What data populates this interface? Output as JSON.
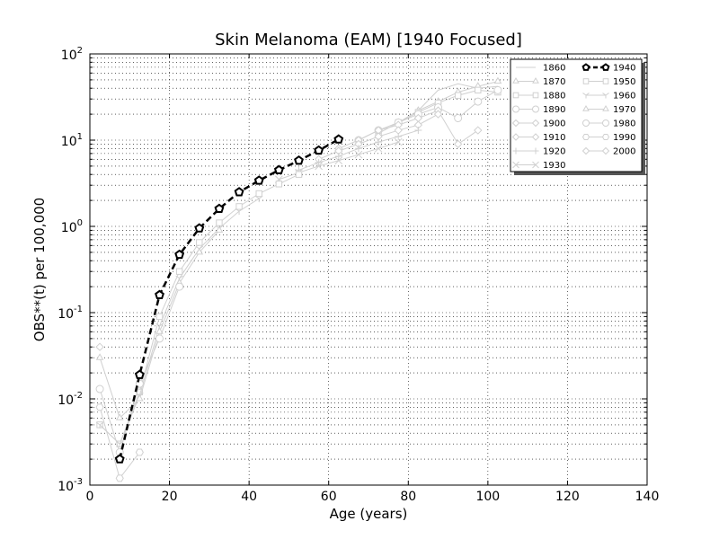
{
  "chart_data": {
    "type": "line",
    "title": "Skin Melanoma (EAM) [1940 Focused]",
    "xlabel": "Age (years)",
    "ylabel": "OBS**(t) per 100,000",
    "xlim": [
      0,
      140
    ],
    "ylim": [
      0.001,
      100
    ],
    "yscale": "log",
    "grid": true,
    "x_ticks": [
      "0",
      "20",
      "40",
      "60",
      "80",
      "100",
      "120",
      "140"
    ],
    "y_ticks": [
      {
        "base": "10",
        "exp": "-3"
      },
      {
        "base": "10",
        "exp": "-2"
      },
      {
        "base": "10",
        "exp": "-1"
      },
      {
        "base": "10",
        "exp": "0"
      },
      {
        "base": "10",
        "exp": "1"
      },
      {
        "base": "10",
        "exp": "2"
      }
    ],
    "legend_position": "top-right",
    "focused_series": "1940",
    "colors": {
      "focused": "#000000",
      "background": "#d0d0d0"
    },
    "series": [
      {
        "name": "1860",
        "marker": "none",
        "x": [
          82.5,
          87.5,
          92.5,
          97.5,
          102.5
        ],
        "y": [
          22,
          38,
          45,
          40,
          42
        ]
      },
      {
        "name": "1870",
        "marker": "triangle",
        "x": [
          77.5,
          82.5,
          87.5,
          92.5,
          97.5,
          102.5
        ],
        "y": [
          16,
          22,
          28,
          36,
          42,
          48
        ]
      },
      {
        "name": "1880",
        "marker": "square",
        "x": [
          72.5,
          77.5,
          82.5,
          87.5,
          92.5,
          97.5,
          102.5
        ],
        "y": [
          12,
          16,
          21,
          27,
          33,
          38,
          36
        ]
      },
      {
        "name": "1890",
        "marker": "circle",
        "x": [
          67.5,
          72.5,
          77.5,
          82.5,
          87.5,
          92.5,
          97.5,
          102.5
        ],
        "y": [
          10,
          13,
          16,
          20,
          24,
          18,
          28,
          38
        ]
      },
      {
        "name": "1900",
        "marker": "diamond",
        "x": [
          62.5,
          67.5,
          72.5,
          77.5,
          82.5,
          87.5,
          92.5,
          97.5
        ],
        "y": [
          8,
          10,
          13,
          15,
          18,
          22,
          9,
          13
        ]
      },
      {
        "name": "1910",
        "marker": "diamond",
        "x": [
          57.5,
          62.5,
          67.5,
          72.5,
          77.5,
          82.5,
          87.5
        ],
        "y": [
          6,
          7.5,
          9,
          11,
          13,
          15,
          20
        ]
      },
      {
        "name": "1920",
        "marker": "plus",
        "x": [
          52.5,
          57.5,
          62.5,
          67.5,
          72.5,
          77.5,
          82.5
        ],
        "y": [
          4.5,
          5.5,
          6.5,
          8,
          9.5,
          11,
          13
        ]
      },
      {
        "name": "1930",
        "marker": "x",
        "x": [
          47.5,
          52.5,
          57.5,
          62.5,
          67.5,
          72.5,
          77.5
        ],
        "y": [
          3.5,
          4.2,
          5,
          5.8,
          6.8,
          8,
          9.5
        ]
      },
      {
        "name": "1940",
        "marker": "pentagon",
        "x": [
          7.5,
          12.5,
          17.5,
          22.5,
          27.5,
          32.5,
          37.5,
          42.5,
          47.5,
          52.5,
          57.5,
          62.5
        ],
        "y": [
          0.002,
          0.019,
          0.16,
          0.47,
          0.95,
          1.6,
          2.5,
          3.4,
          4.5,
          5.8,
          7.6,
          10.2
        ]
      },
      {
        "name": "1950",
        "marker": "square",
        "x": [
          2.5,
          7.5,
          12.5,
          17.5,
          22.5,
          27.5,
          32.5,
          37.5,
          42.5,
          47.5,
          52.5
        ],
        "y": [
          0.005,
          0.003,
          0.012,
          0.09,
          0.3,
          0.65,
          1.1,
          1.7,
          2.4,
          3.1,
          4.0
        ]
      },
      {
        "name": "1960",
        "marker": "y",
        "x": [
          2.5,
          7.5,
          12.5,
          17.5,
          22.5,
          27.5,
          32.5,
          37.5,
          42.5
        ],
        "y": [
          0.005,
          0.003,
          0.011,
          0.07,
          0.25,
          0.55,
          0.95,
          1.5,
          2.1
        ]
      },
      {
        "name": "1970",
        "marker": "triangle",
        "x": [
          2.5,
          7.5,
          12.5,
          17.5,
          22.5,
          27.5,
          32.5
        ],
        "y": [
          0.03,
          0.006,
          0.01,
          0.06,
          0.22,
          0.5,
          0.9
        ]
      },
      {
        "name": "1980",
        "marker": "circle",
        "x": [
          2.5,
          7.5,
          12.5,
          17.5,
          22.5
        ],
        "y": [
          0.013,
          0.0024,
          0.015,
          0.05,
          0.2
        ]
      },
      {
        "name": "1990",
        "marker": "hexagon",
        "x": [
          2.5,
          7.5,
          12.5
        ],
        "y": [
          0.008,
          0.0012,
          0.0024
        ]
      },
      {
        "name": "2000",
        "marker": "diamond",
        "x": [
          2.5
        ],
        "y": [
          0.04
        ]
      }
    ]
  }
}
